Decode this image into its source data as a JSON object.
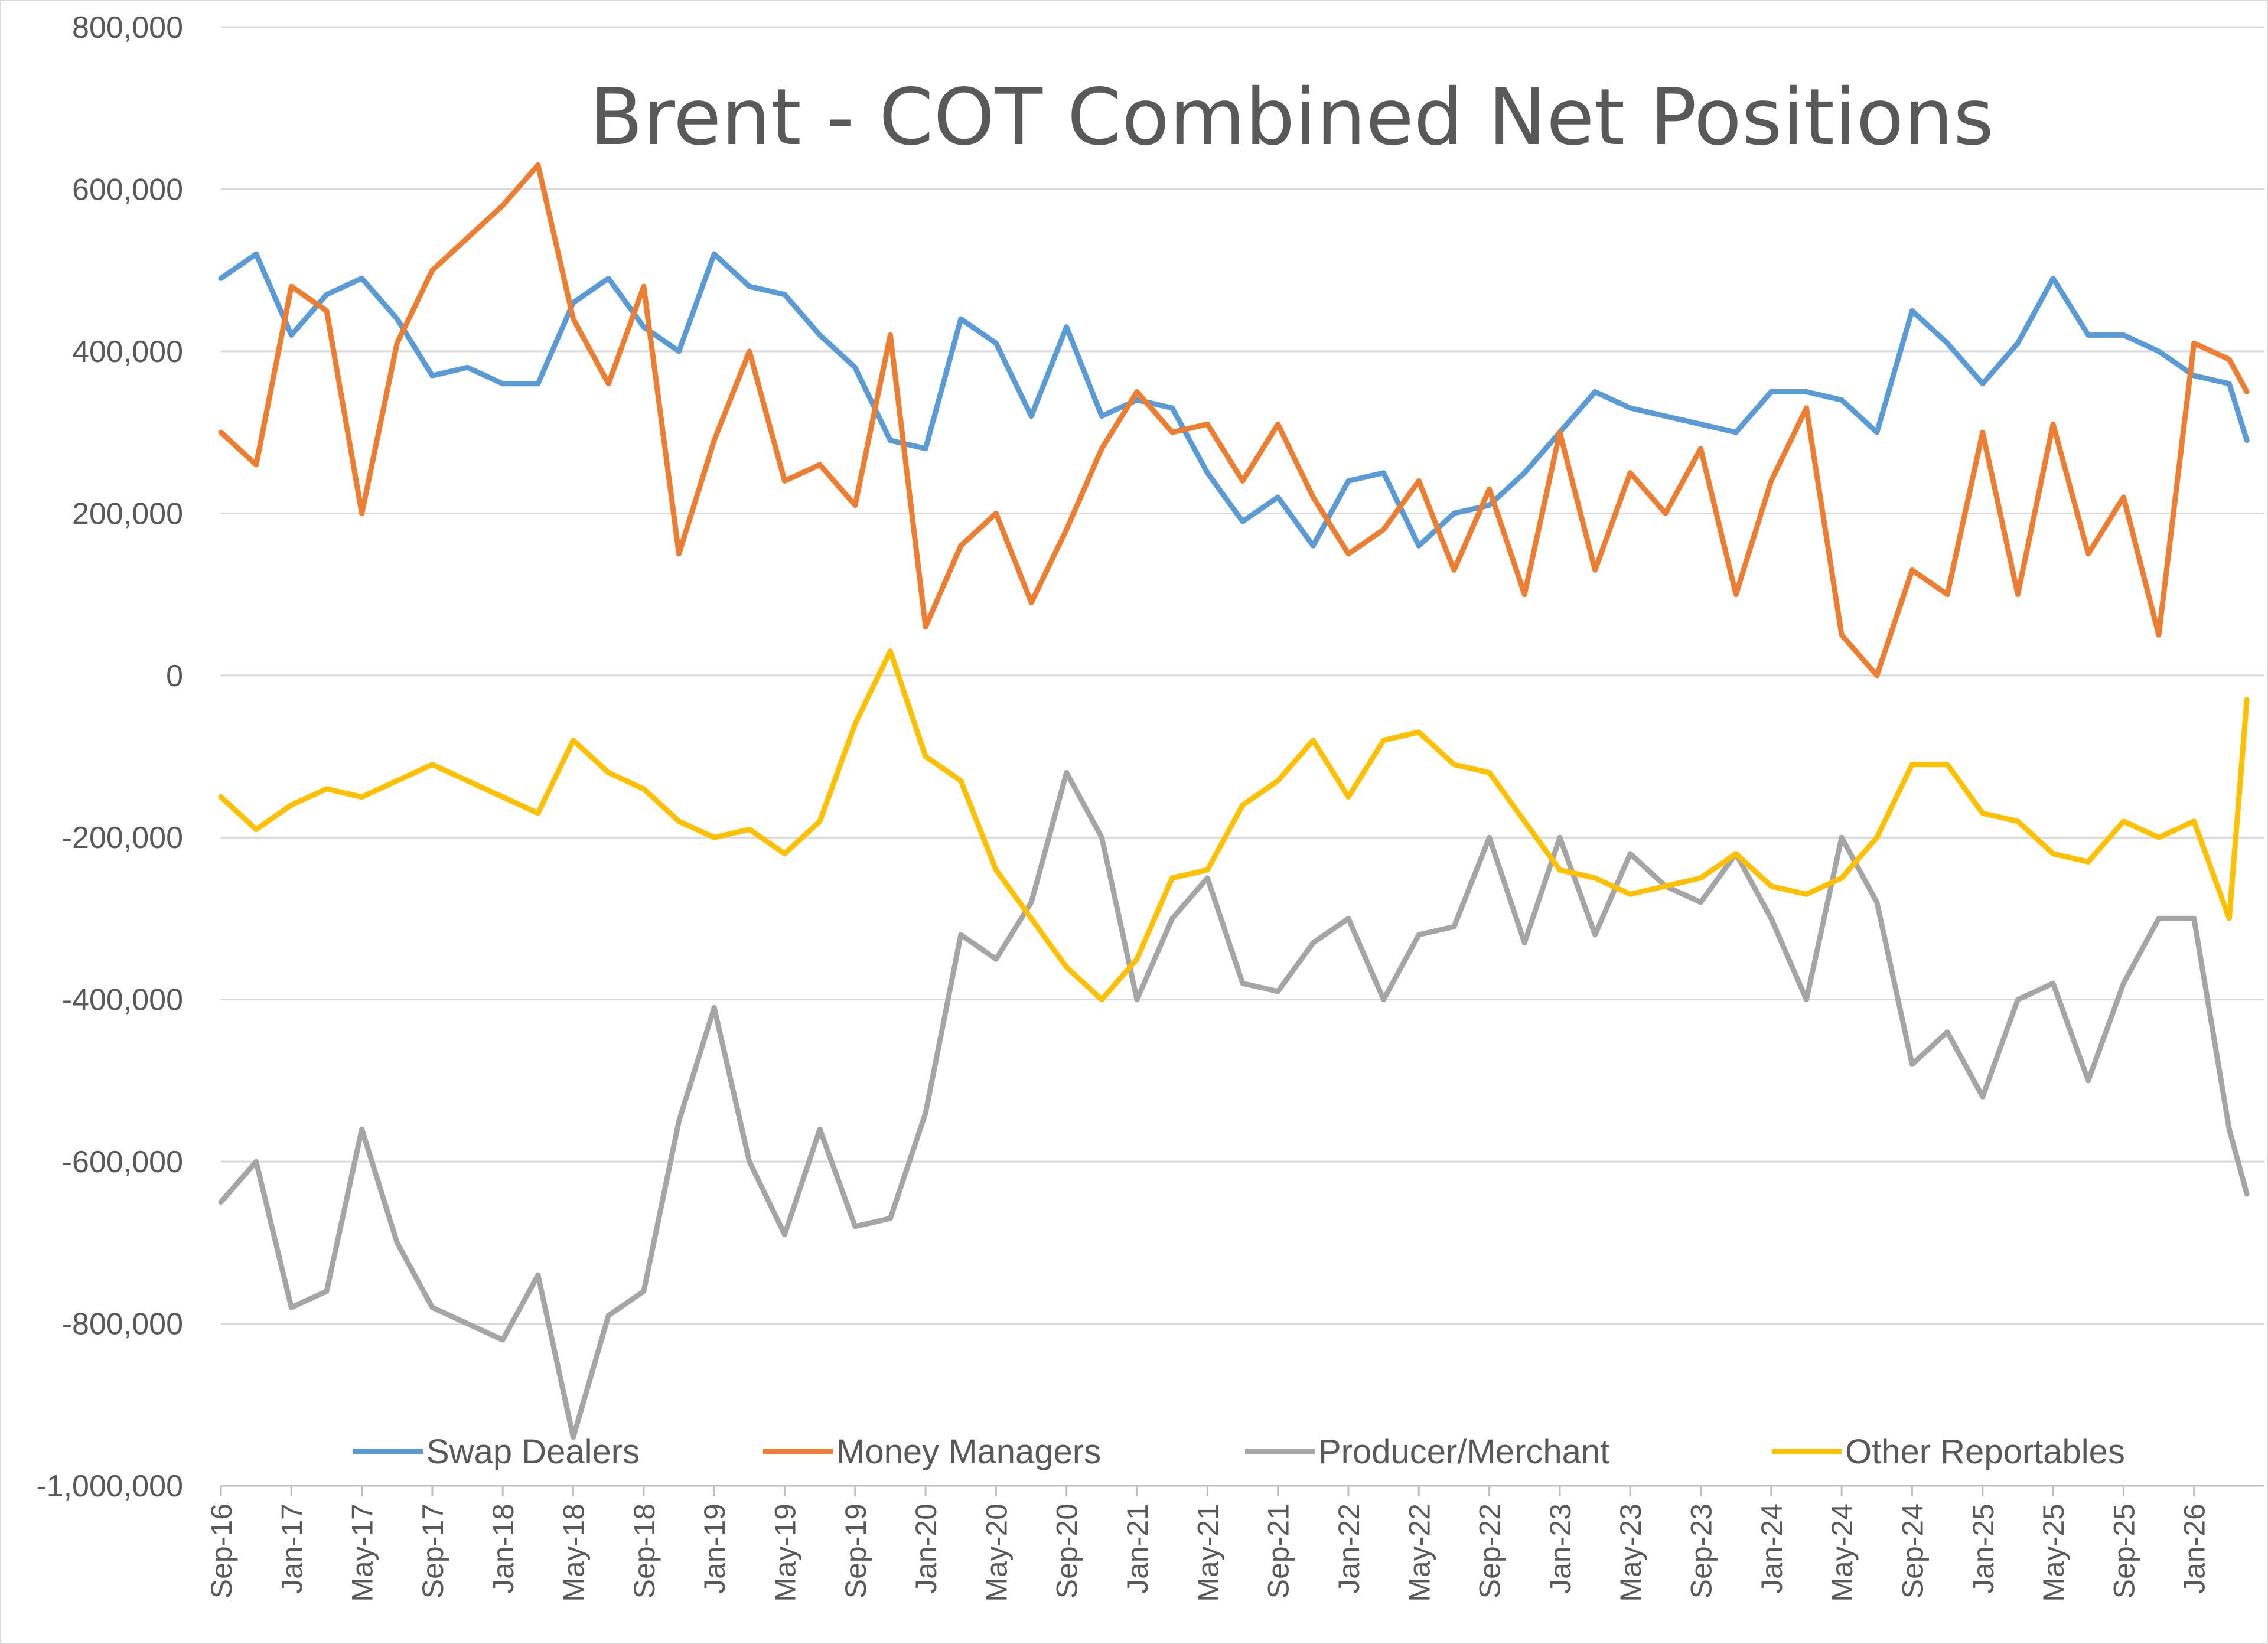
{
  "chart_data": {
    "type": "line",
    "title": "Brent - COT Combined Net Positions",
    "xlabel": "",
    "ylabel": "",
    "ylim": [
      -1000000,
      800000
    ],
    "grid": "horizontal",
    "legend_position": "bottom",
    "x_tick_labels": [
      "Sep-16",
      "Jan-17",
      "May-17",
      "Sep-17",
      "Jan-18",
      "May-18",
      "Sep-18",
      "Jan-19",
      "May-19",
      "Sep-19",
      "Jan-20",
      "May-20",
      "Sep-20",
      "Jan-21",
      "May-21",
      "Sep-21",
      "Jan-22",
      "May-22",
      "Sep-22",
      "Jan-23",
      "May-23",
      "Sep-23",
      "Jan-24",
      "May-24",
      "Sep-24",
      "Jan-25",
      "May-25",
      "Sep-25",
      "Jan-26"
    ],
    "y_tick_labels": [
      "800,000",
      "600,000",
      "400,000",
      "200,000",
      "0",
      "-200,000",
      "-400,000",
      "-600,000",
      "-800,000",
      "-1,000,000"
    ],
    "y_ticks": [
      800000,
      600000,
      400000,
      200000,
      0,
      -200000,
      -400000,
      -600000,
      -800000,
      -1000000
    ],
    "series": [
      {
        "name": "Swap Dealers",
        "color": "#5b9bd5",
        "x": [
          "2016-09",
          "2016-11",
          "2017-01",
          "2017-03",
          "2017-05",
          "2017-07",
          "2017-09",
          "2017-11",
          "2018-01",
          "2018-03",
          "2018-05",
          "2018-07",
          "2018-09",
          "2018-11",
          "2019-01",
          "2019-03",
          "2019-05",
          "2019-07",
          "2019-09",
          "2019-11",
          "2020-01",
          "2020-03",
          "2020-05",
          "2020-07",
          "2020-09",
          "2020-11",
          "2021-01",
          "2021-03",
          "2021-05",
          "2021-07",
          "2021-09",
          "2021-11",
          "2022-01",
          "2022-03",
          "2022-05",
          "2022-07",
          "2022-09",
          "2022-11",
          "2023-01",
          "2023-03",
          "2023-05",
          "2023-07",
          "2023-09",
          "2023-11",
          "2024-01",
          "2024-03",
          "2024-05",
          "2024-07",
          "2024-09",
          "2024-11",
          "2025-01",
          "2025-03",
          "2025-05",
          "2025-07",
          "2025-09",
          "2025-11",
          "2026-01",
          "2026-03",
          "2026-04"
        ],
        "values": [
          490000,
          520000,
          420000,
          470000,
          490000,
          440000,
          370000,
          380000,
          360000,
          360000,
          460000,
          490000,
          430000,
          400000,
          520000,
          480000,
          470000,
          420000,
          380000,
          290000,
          280000,
          440000,
          410000,
          320000,
          430000,
          320000,
          340000,
          330000,
          250000,
          190000,
          220000,
          160000,
          240000,
          250000,
          160000,
          200000,
          210000,
          250000,
          300000,
          350000,
          330000,
          320000,
          310000,
          300000,
          350000,
          350000,
          340000,
          300000,
          450000,
          410000,
          360000,
          410000,
          490000,
          420000,
          420000,
          400000,
          370000,
          360000,
          290000
        ]
      },
      {
        "name": "Money Managers",
        "color": "#ed7d31",
        "x": [
          "2016-09",
          "2016-11",
          "2017-01",
          "2017-03",
          "2017-05",
          "2017-07",
          "2017-09",
          "2017-11",
          "2018-01",
          "2018-03",
          "2018-05",
          "2018-07",
          "2018-09",
          "2018-11",
          "2019-01",
          "2019-03",
          "2019-05",
          "2019-07",
          "2019-09",
          "2019-11",
          "2020-01",
          "2020-03",
          "2020-05",
          "2020-07",
          "2020-09",
          "2020-11",
          "2021-01",
          "2021-03",
          "2021-05",
          "2021-07",
          "2021-09",
          "2021-11",
          "2022-01",
          "2022-03",
          "2022-05",
          "2022-07",
          "2022-09",
          "2022-11",
          "2023-01",
          "2023-03",
          "2023-05",
          "2023-07",
          "2023-09",
          "2023-11",
          "2024-01",
          "2024-03",
          "2024-05",
          "2024-07",
          "2024-09",
          "2024-11",
          "2025-01",
          "2025-03",
          "2025-05",
          "2025-07",
          "2025-09",
          "2025-11",
          "2026-01",
          "2026-03",
          "2026-04"
        ],
        "values": [
          300000,
          260000,
          480000,
          450000,
          200000,
          410000,
          500000,
          540000,
          580000,
          630000,
          440000,
          360000,
          480000,
          150000,
          290000,
          400000,
          240000,
          260000,
          210000,
          420000,
          60000,
          160000,
          200000,
          90000,
          180000,
          280000,
          350000,
          300000,
          310000,
          240000,
          310000,
          220000,
          150000,
          180000,
          240000,
          130000,
          230000,
          100000,
          300000,
          130000,
          250000,
          200000,
          280000,
          100000,
          240000,
          330000,
          50000,
          0,
          130000,
          100000,
          300000,
          100000,
          310000,
          150000,
          220000,
          50000,
          410000,
          390000,
          350000
        ]
      },
      {
        "name": "Producer/Merchant",
        "color": "#a5a5a5",
        "x": [
          "2016-09",
          "2016-11",
          "2017-01",
          "2017-03",
          "2017-05",
          "2017-07",
          "2017-09",
          "2017-11",
          "2018-01",
          "2018-03",
          "2018-05",
          "2018-07",
          "2018-09",
          "2018-11",
          "2019-01",
          "2019-03",
          "2019-05",
          "2019-07",
          "2019-09",
          "2019-11",
          "2020-01",
          "2020-03",
          "2020-05",
          "2020-07",
          "2020-09",
          "2020-11",
          "2021-01",
          "2021-03",
          "2021-05",
          "2021-07",
          "2021-09",
          "2021-11",
          "2022-01",
          "2022-03",
          "2022-05",
          "2022-07",
          "2022-09",
          "2022-11",
          "2023-01",
          "2023-03",
          "2023-05",
          "2023-07",
          "2023-09",
          "2023-11",
          "2024-01",
          "2024-03",
          "2024-05",
          "2024-07",
          "2024-09",
          "2024-11",
          "2025-01",
          "2025-03",
          "2025-05",
          "2025-07",
          "2025-09",
          "2025-11",
          "2026-01",
          "2026-03",
          "2026-04"
        ],
        "values": [
          -650000,
          -600000,
          -780000,
          -760000,
          -560000,
          -700000,
          -780000,
          -800000,
          -820000,
          -740000,
          -940000,
          -790000,
          -760000,
          -550000,
          -410000,
          -600000,
          -690000,
          -560000,
          -680000,
          -670000,
          -540000,
          -320000,
          -350000,
          -280000,
          -120000,
          -200000,
          -400000,
          -300000,
          -250000,
          -380000,
          -390000,
          -330000,
          -300000,
          -400000,
          -320000,
          -310000,
          -200000,
          -330000,
          -200000,
          -320000,
          -220000,
          -260000,
          -280000,
          -220000,
          -300000,
          -400000,
          -200000,
          -280000,
          -480000,
          -440000,
          -520000,
          -400000,
          -380000,
          -500000,
          -380000,
          -300000,
          -300000,
          -560000,
          -640000
        ]
      },
      {
        "name": "Other Reportables",
        "color": "#ffc000",
        "x": [
          "2016-09",
          "2016-11",
          "2017-01",
          "2017-03",
          "2017-05",
          "2017-07",
          "2017-09",
          "2017-11",
          "2018-01",
          "2018-03",
          "2018-05",
          "2018-07",
          "2018-09",
          "2018-11",
          "2019-01",
          "2019-03",
          "2019-05",
          "2019-07",
          "2019-09",
          "2019-11",
          "2020-01",
          "2020-03",
          "2020-05",
          "2020-07",
          "2020-09",
          "2020-11",
          "2021-01",
          "2021-03",
          "2021-05",
          "2021-07",
          "2021-09",
          "2021-11",
          "2022-01",
          "2022-03",
          "2022-05",
          "2022-07",
          "2022-09",
          "2022-11",
          "2023-01",
          "2023-03",
          "2023-05",
          "2023-07",
          "2023-09",
          "2023-11",
          "2024-01",
          "2024-03",
          "2024-05",
          "2024-07",
          "2024-09",
          "2024-11",
          "2025-01",
          "2025-03",
          "2025-05",
          "2025-07",
          "2025-09",
          "2025-11",
          "2026-01",
          "2026-03",
          "2026-04"
        ],
        "values": [
          -150000,
          -190000,
          -160000,
          -140000,
          -150000,
          -130000,
          -110000,
          -130000,
          -150000,
          -170000,
          -80000,
          -120000,
          -140000,
          -180000,
          -200000,
          -190000,
          -220000,
          -180000,
          -60000,
          30000,
          -100000,
          -130000,
          -240000,
          -300000,
          -360000,
          -400000,
          -350000,
          -250000,
          -240000,
          -160000,
          -130000,
          -80000,
          -150000,
          -80000,
          -70000,
          -110000,
          -120000,
          -180000,
          -240000,
          -250000,
          -270000,
          -260000,
          -250000,
          -220000,
          -260000,
          -270000,
          -250000,
          -200000,
          -110000,
          -110000,
          -170000,
          -180000,
          -220000,
          -230000,
          -180000,
          -200000,
          -180000,
          -300000,
          -30000
        ]
      }
    ]
  }
}
